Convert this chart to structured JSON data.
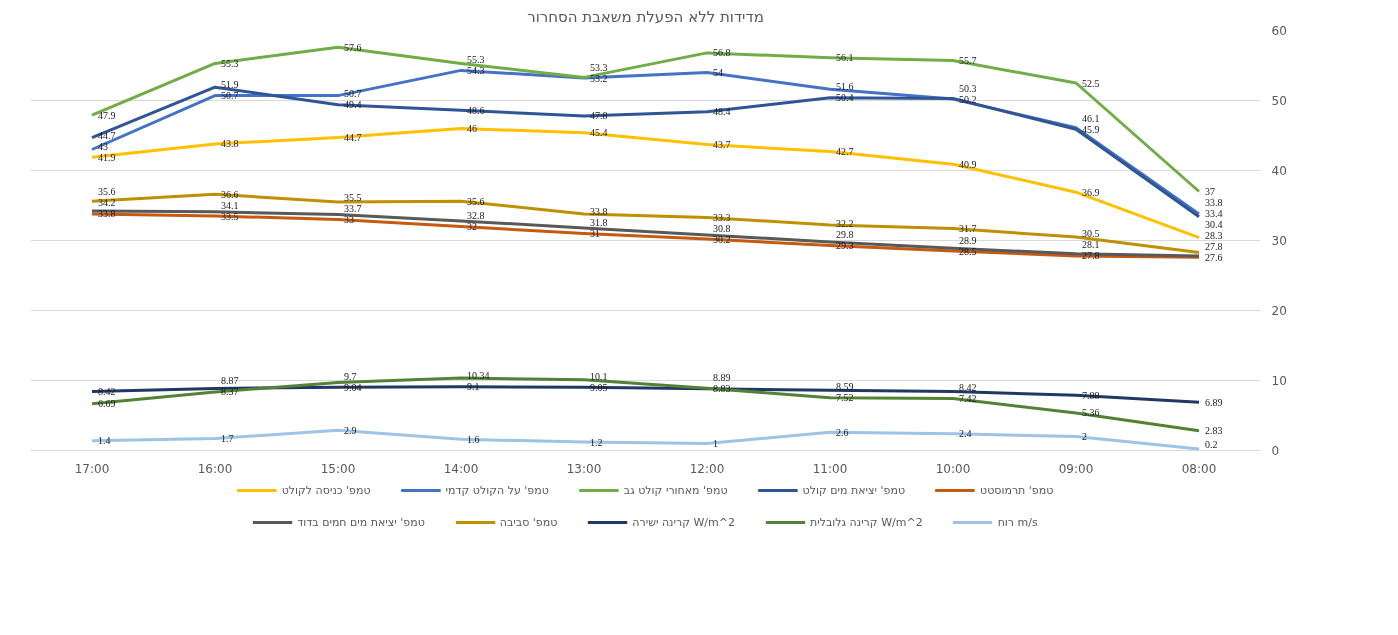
{
  "chart_data": {
    "type": "line",
    "title": "מדידות ללא הפעלת משאבת הסחרור",
    "categories": [
      "17:00",
      "16:00",
      "15:00",
      "14:00",
      "13:00",
      "12:00",
      "11:00",
      "10:00",
      "09:00",
      "08:00"
    ],
    "series": [
      {
        "name": "טמפ' כניסה לקולט",
        "color": "#ffc000",
        "values": [
          41.9,
          43.8,
          44.7,
          46,
          45.4,
          43.7,
          42.7,
          40.9,
          36.9,
          30.4
        ]
      },
      {
        "name": "טמפ' על הקולט קדמי",
        "color": "#4472c4",
        "values": [
          43,
          50.7,
          50.7,
          54.3,
          53.2,
          54,
          51.6,
          50.2,
          46.1,
          33.8
        ]
      },
      {
        "name": "טמפ' מאחורי קולט גב",
        "color": "#70ad47",
        "values": [
          47.9,
          55.3,
          57.6,
          55.3,
          53.3,
          56.8,
          56.1,
          55.7,
          52.5,
          37
        ]
      },
      {
        "name": "טמפ' יציאת מים קולט",
        "color": "#2f5597",
        "values": [
          44.7,
          51.9,
          49.4,
          48.6,
          47.8,
          48.4,
          50.4,
          50.3,
          45.9,
          33.4
        ]
      },
      {
        "name": "טמפ' תרמוסטט",
        "color": "#c55a11",
        "values": [
          33.8,
          33.5,
          33,
          32,
          31,
          30.2,
          29.3,
          28.5,
          27.8,
          27.6
        ]
      },
      {
        "name": "טמפ' יציאת מים חמים בדוד",
        "color": "#595959",
        "values": [
          34.2,
          34.1,
          33.7,
          32.8,
          31.8,
          30.8,
          29.8,
          28.9,
          28.1,
          27.8
        ]
      },
      {
        "name": "טמפ' סביבה",
        "color": "#bf9000",
        "values": [
          35.6,
          36.6,
          35.5,
          35.6,
          33.8,
          33.3,
          32.2,
          31.7,
          30.5,
          28.3
        ]
      },
      {
        "name": "קרינה ישירה W/m^2",
        "color": "#203864",
        "values": [
          8.42,
          8.87,
          9.04,
          9.1,
          9.05,
          8.83,
          8.59,
          8.42,
          7.88,
          6.89
        ]
      },
      {
        "name": "קרינה גלובלית W/m^2",
        "color": "#548235",
        "values": [
          6.69,
          8.37,
          9.7,
          10.34,
          10.1,
          8.89,
          7.52,
          7.42,
          5.36,
          2.83
        ]
      },
      {
        "name": "רוח m/s",
        "color": "#9dc3e6",
        "values": [
          1.4,
          1.7,
          2.9,
          1.6,
          1.2,
          1,
          2.6,
          2.4,
          2,
          0.2
        ]
      }
    ],
    "ylim": [
      0,
      60
    ],
    "yticks": [
      0,
      10,
      20,
      30,
      40,
      50,
      60
    ],
    "grid": "y",
    "legend": "bottom",
    "data_labels": true,
    "marker": "none",
    "line_style": "solid"
  }
}
